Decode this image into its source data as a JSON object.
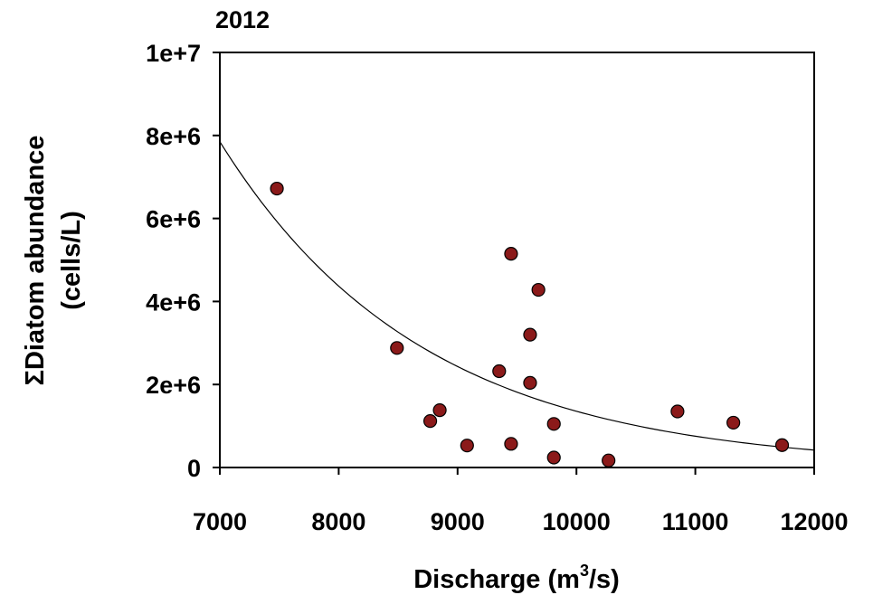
{
  "chart_data": {
    "type": "scatter",
    "title": "2012",
    "xlabel": {
      "main": "Discharge (m",
      "sup": "3",
      "end": "/s)"
    },
    "ylabel": {
      "line1": "ΣDiatom abundance",
      "line2": "(cells/L)"
    },
    "xlim": [
      7000,
      12000
    ],
    "ylim": [
      0,
      10000000
    ],
    "x_ticks": [
      7000,
      8000,
      9000,
      10000,
      11000,
      12000
    ],
    "x_tick_labels": [
      "7000",
      "8000",
      "9000",
      "10000",
      "11000",
      "12000"
    ],
    "y_ticks": [
      0,
      2000000,
      4000000,
      6000000,
      8000000,
      10000000
    ],
    "y_tick_labels": [
      "0",
      "2e+6",
      "4e+6",
      "6e+6",
      "8e+6",
      "1e+7"
    ],
    "grid": false,
    "legend": "none",
    "marker_color": "#8b1a1a",
    "series": [
      {
        "points": [
          {
            "x": 7480,
            "y": 6720000
          },
          {
            "x": 8490,
            "y": 2880000
          },
          {
            "x": 8770,
            "y": 1120000
          },
          {
            "x": 8850,
            "y": 1380000
          },
          {
            "x": 9080,
            "y": 530000
          },
          {
            "x": 9350,
            "y": 2320000
          },
          {
            "x": 9450,
            "y": 5150000
          },
          {
            "x": 9450,
            "y": 570000
          },
          {
            "x": 9610,
            "y": 3200000
          },
          {
            "x": 9610,
            "y": 2040000
          },
          {
            "x": 9680,
            "y": 4280000
          },
          {
            "x": 9810,
            "y": 1050000
          },
          {
            "x": 9810,
            "y": 240000
          },
          {
            "x": 10270,
            "y": 170000
          },
          {
            "x": 10850,
            "y": 1350000
          },
          {
            "x": 11320,
            "y": 1080000
          },
          {
            "x": 11730,
            "y": 540000
          }
        ]
      }
    ],
    "trend": {
      "type": "exponential",
      "curve": [
        {
          "x": 7000,
          "y": 7850000
        },
        {
          "x": 8000,
          "y": 4460000
        },
        {
          "x": 9000,
          "y": 2520000
        },
        {
          "x": 10000,
          "y": 1430000
        },
        {
          "x": 11000,
          "y": 810000
        },
        {
          "x": 12000,
          "y": 420000
        }
      ]
    }
  }
}
